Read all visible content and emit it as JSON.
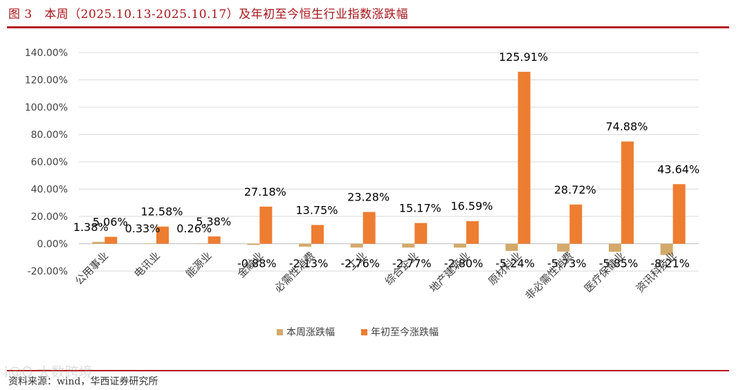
{
  "header": {
    "title": "图 3　本周（2025.10.13-2025.10.17）及年初至今恒生行业指数涨跌幅"
  },
  "footer": {
    "source": "资料来源：wind，华西证券研究所",
    "watermark": "i@O 大数跨境"
  },
  "colors": {
    "accent": "#b3171c",
    "weekly": "#d4aa6a",
    "ytd": "#ed7d31",
    "grid": "#d9d9d9"
  },
  "chart_data": {
    "type": "bar",
    "categories": [
      "公用事业",
      "电讯业",
      "能源业",
      "金融业",
      "必需性消费",
      "工业",
      "综合企业",
      "地产建筑业",
      "原材料业",
      "非必需性消费",
      "医疗保健业",
      "资讯科技业"
    ],
    "series": [
      {
        "name": "本周涨跌幅",
        "values": [
          1.38,
          0.33,
          0.26,
          -0.88,
          -2.13,
          -2.76,
          -2.77,
          -2.8,
          -5.24,
          -5.73,
          -5.85,
          -8.21
        ],
        "labels": [
          "1.38%",
          "0.33%",
          "0.26%",
          "-0.88%",
          "-2.13%",
          "-2.76%",
          "-2.77%",
          "-2.80%",
          "-5.24%",
          "-5.73%",
          "-5.85%",
          "-8.21%"
        ]
      },
      {
        "name": "年初至今涨跌幅",
        "values": [
          5.06,
          12.58,
          5.38,
          27.18,
          13.75,
          23.28,
          15.17,
          16.59,
          125.91,
          28.72,
          74.88,
          43.64
        ],
        "labels": [
          "5.06%",
          "12.58%",
          "5.38%",
          "27.18%",
          "13.75%",
          "23.28%",
          "15.17%",
          "16.59%",
          "125.91%",
          "28.72%",
          "74.88%",
          "43.64%"
        ]
      }
    ],
    "ylim": [
      -20,
      140
    ],
    "yticks": [
      -20,
      0,
      20,
      40,
      60,
      80,
      100,
      120,
      140
    ],
    "ytick_labels": [
      "-20.00%",
      "0.00%",
      "20.00%",
      "40.00%",
      "60.00%",
      "80.00%",
      "100.00%",
      "120.00%",
      "140.00%"
    ],
    "grid": true,
    "legend_position": "bottom"
  }
}
